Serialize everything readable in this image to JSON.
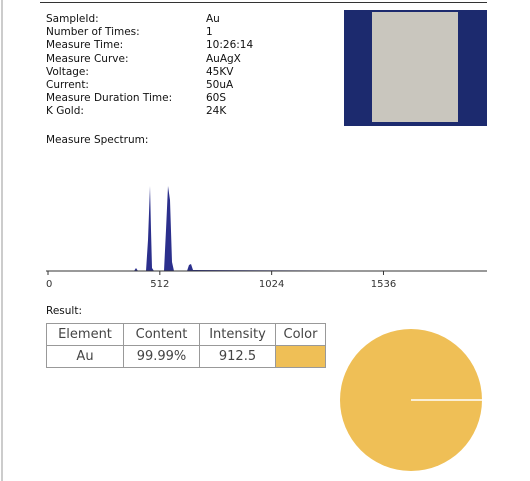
{
  "fields": [
    {
      "label": "SampleId:",
      "value": "Au"
    },
    {
      "label": "Number of Times:",
      "value": "1"
    },
    {
      "label": "Measure Time:",
      "value": "10:26:14"
    },
    {
      "label": "Measure Curve:",
      "value": "AuAgX"
    },
    {
      "label": "Voltage:",
      "value": "45KV"
    },
    {
      "label": "Current:",
      "value": "50uA"
    },
    {
      "label": "Measure Duration Time:",
      "value": "60S"
    },
    {
      "label": "K Gold:",
      "value": "24K"
    }
  ],
  "spectrum": {
    "title": "Measure Spectrum:",
    "xlim": [
      0,
      2010
    ],
    "xticks": [
      0,
      512,
      1024,
      1536
    ]
  },
  "result": {
    "title": "Result:",
    "color": "#efbf56",
    "table": {
      "header": [
        "Element",
        "Content",
        "Intensity",
        "Color"
      ],
      "rows": [
        [
          "Au",
          "99.99%",
          "912.5"
        ]
      ]
    }
  }
}
